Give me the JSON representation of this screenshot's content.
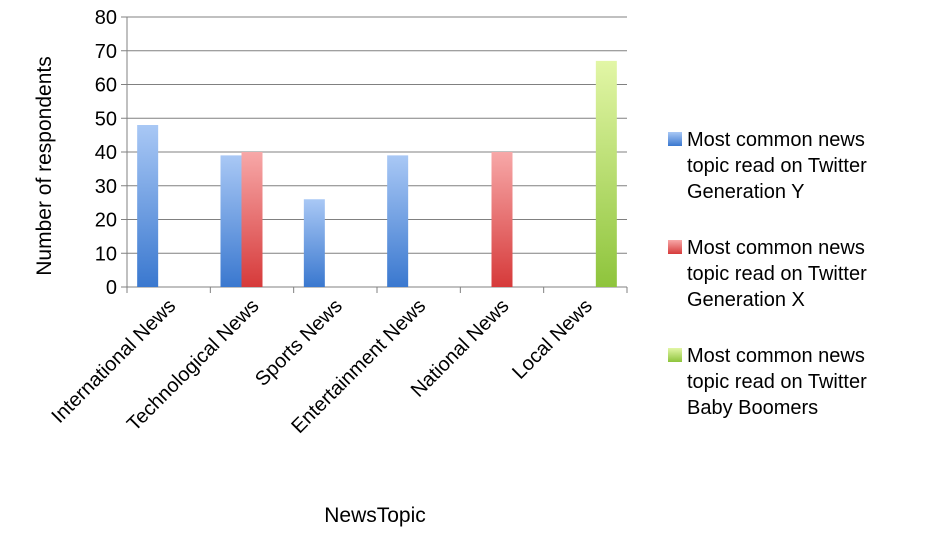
{
  "chart_data": {
    "type": "bar",
    "xlabel": "NewsTopic",
    "ylabel": "Number of respondents",
    "ylim": [
      0,
      80
    ],
    "yticks": [
      0,
      10,
      20,
      30,
      40,
      50,
      60,
      70,
      80
    ],
    "grid": true,
    "legend_position": "right",
    "categories": [
      "International News",
      "Technological News",
      "Sports News",
      "Entertainment News",
      "National News",
      "Local News"
    ],
    "series": [
      {
        "name_lines": [
          "Most common news",
          "topic read on Twitter",
          "Generation Y"
        ],
        "values": [
          48,
          39,
          26,
          39,
          null,
          null
        ],
        "color_top": "#a9c8f5",
        "color_bottom": "#3a78cf"
      },
      {
        "name_lines": [
          "Most common news",
          "topic read on Twitter",
          "Generation X"
        ],
        "values": [
          null,
          40,
          null,
          null,
          40,
          null
        ],
        "color_top": "#f7a8a8",
        "color_bottom": "#d63a3a"
      },
      {
        "name_lines": [
          "Most common news",
          "topic read on Twitter",
          "Baby Boomers"
        ],
        "values": [
          null,
          null,
          null,
          null,
          null,
          67
        ],
        "color_top": "#e2f6a6",
        "color_bottom": "#8ec43c"
      }
    ]
  }
}
